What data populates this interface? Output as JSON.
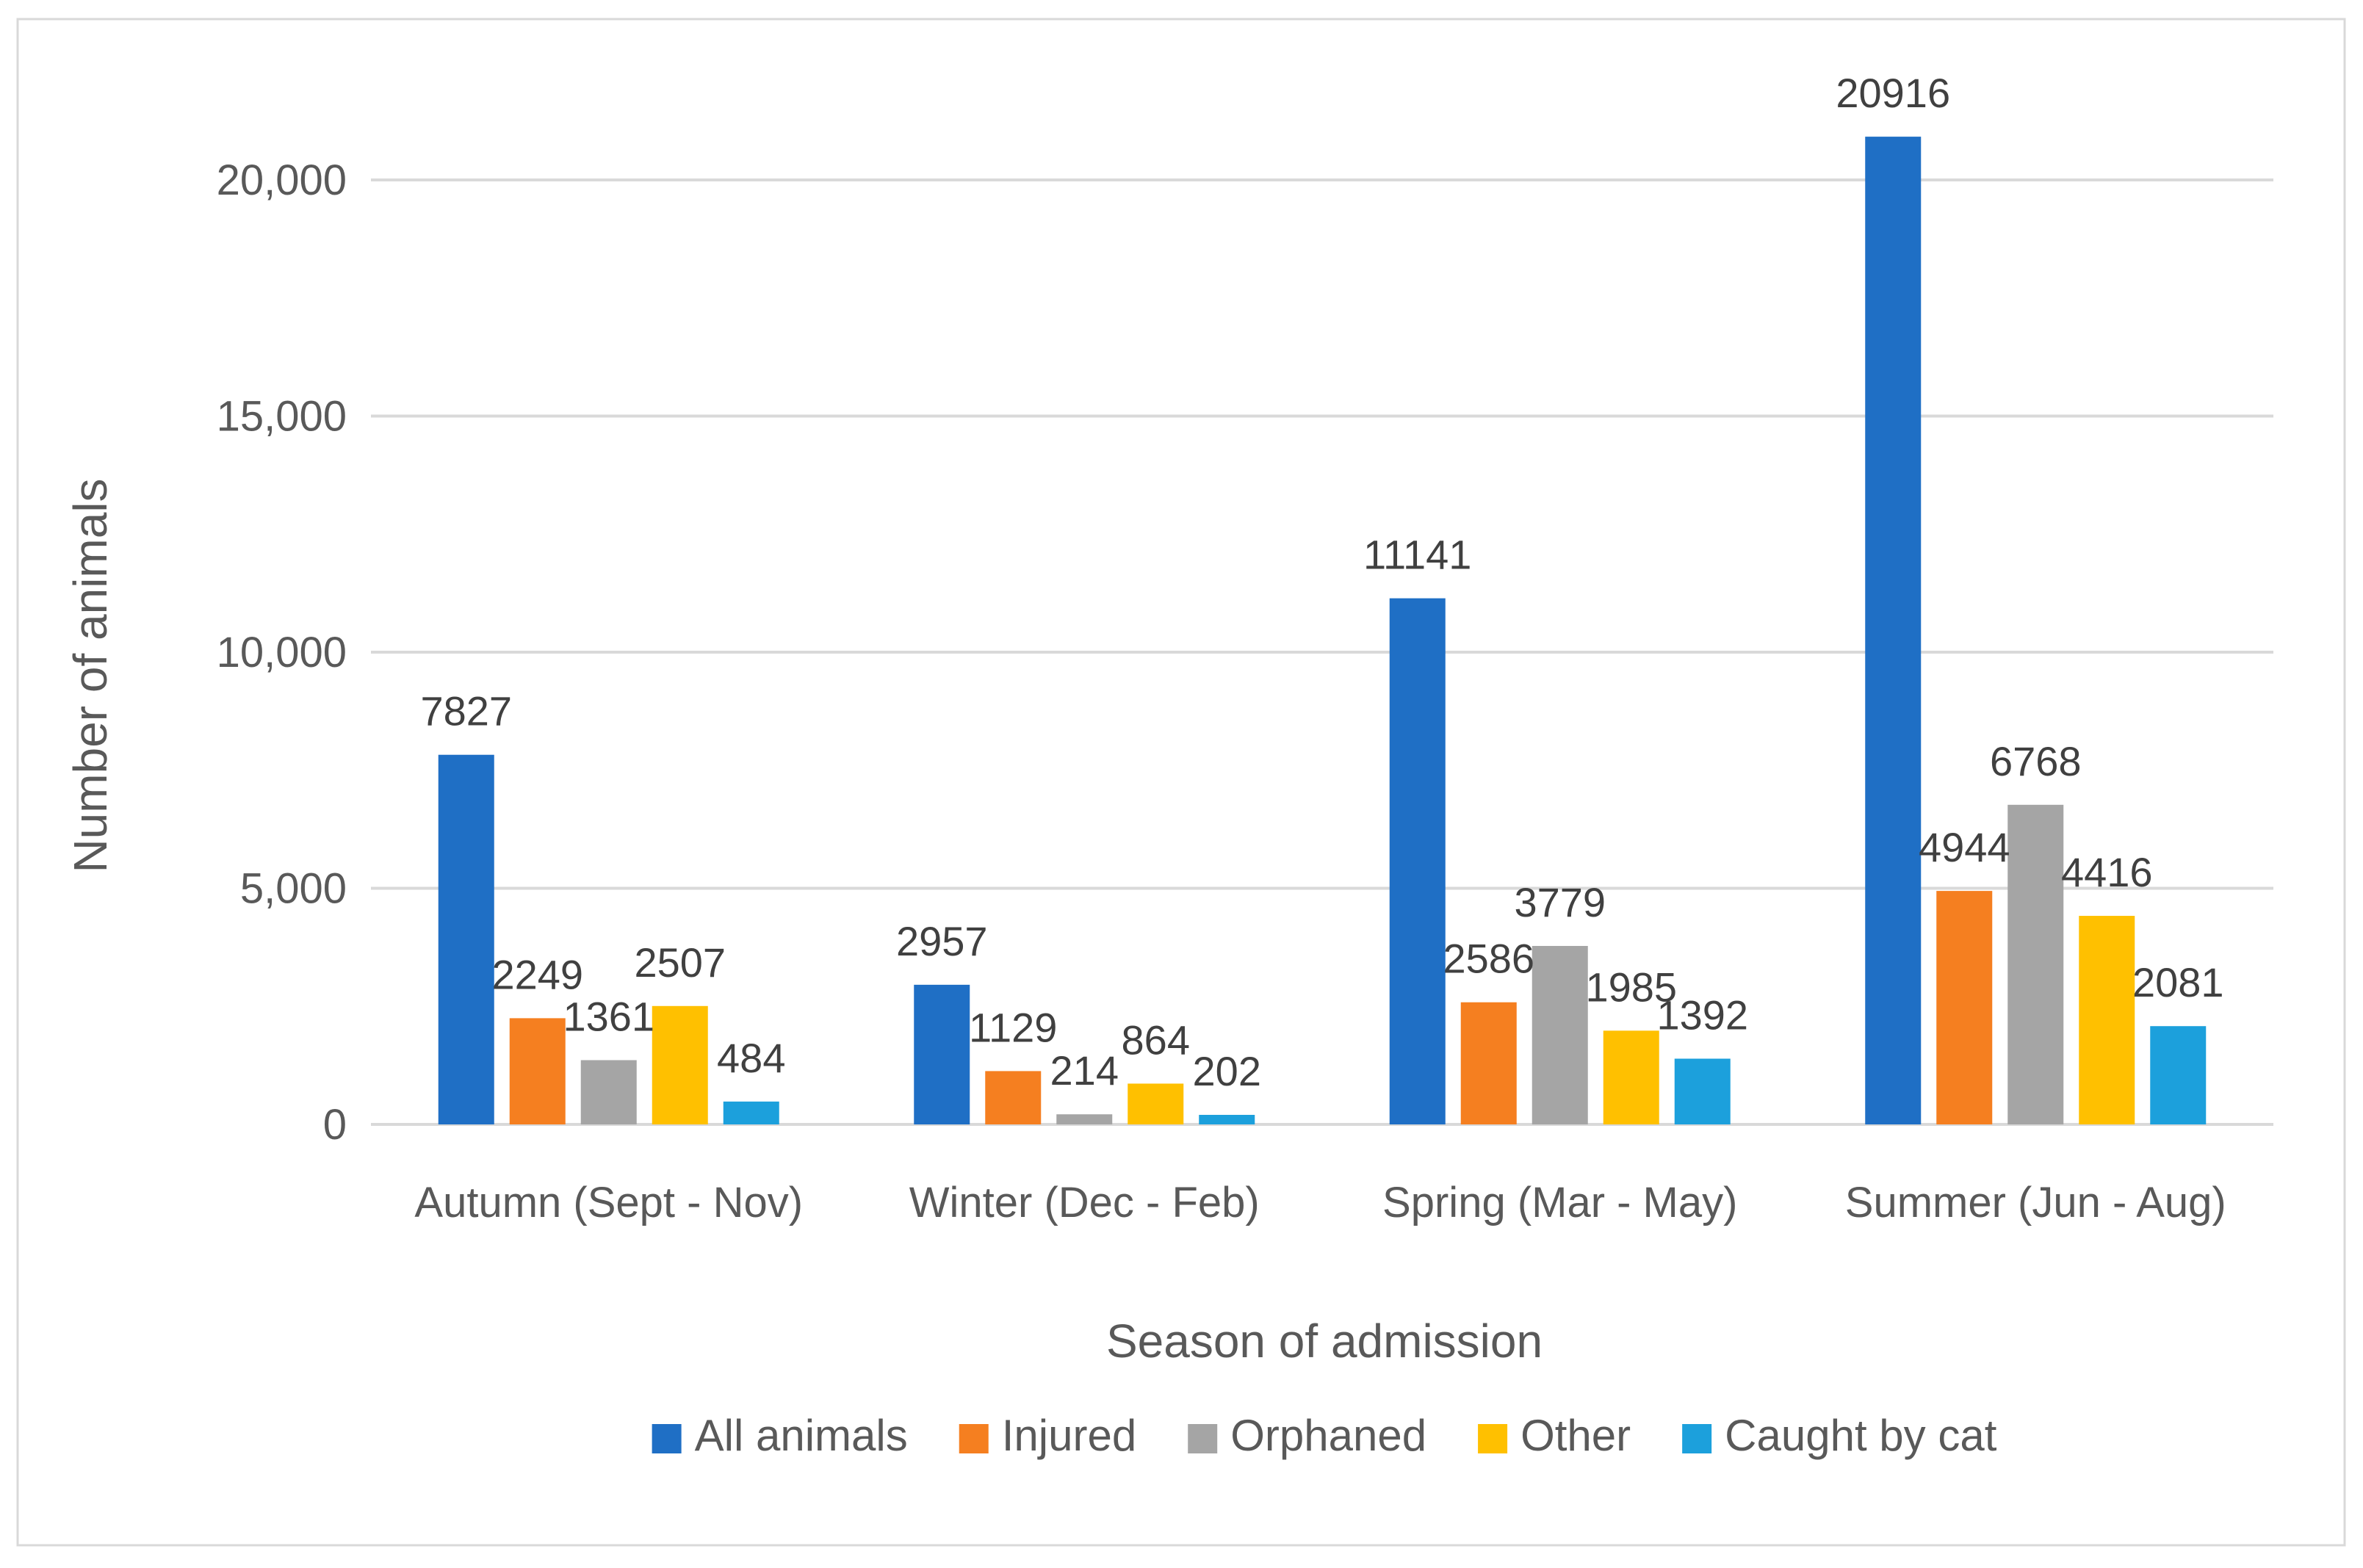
{
  "chart_data": {
    "type": "bar",
    "title": "",
    "xlabel": "Season of admission",
    "ylabel": "Number of animals",
    "ylim": [
      0,
      20000
    ],
    "yticks": [
      0,
      5000,
      10000,
      15000,
      20000
    ],
    "ytick_labels": [
      "0",
      "5,000",
      "10,000",
      "15,000",
      "20,000"
    ],
    "grid": true,
    "legend_position": "bottom",
    "categories": [
      "Autumn (Sept - Nov)",
      "Winter (Dec - Feb)",
      "Spring (Mar - May)",
      "Summer (Jun - Aug)"
    ],
    "series": [
      {
        "name": "All animals",
        "color": "#1f6fc5",
        "values": [
          7827,
          2957,
          11141,
          20916
        ]
      },
      {
        "name": "Injured",
        "color": "#f57f20",
        "values": [
          2249,
          1129,
          2586,
          4944
        ]
      },
      {
        "name": "Orphaned",
        "color": "#a5a5a5",
        "values": [
          1361,
          214,
          3779,
          6768
        ]
      },
      {
        "name": "Other",
        "color": "#ffc000",
        "values": [
          2507,
          864,
          1985,
          4416
        ]
      },
      {
        "name": "Caught by cat",
        "color": "#1ca0dc",
        "values": [
          484,
          202,
          1392,
          2081
        ]
      }
    ]
  }
}
